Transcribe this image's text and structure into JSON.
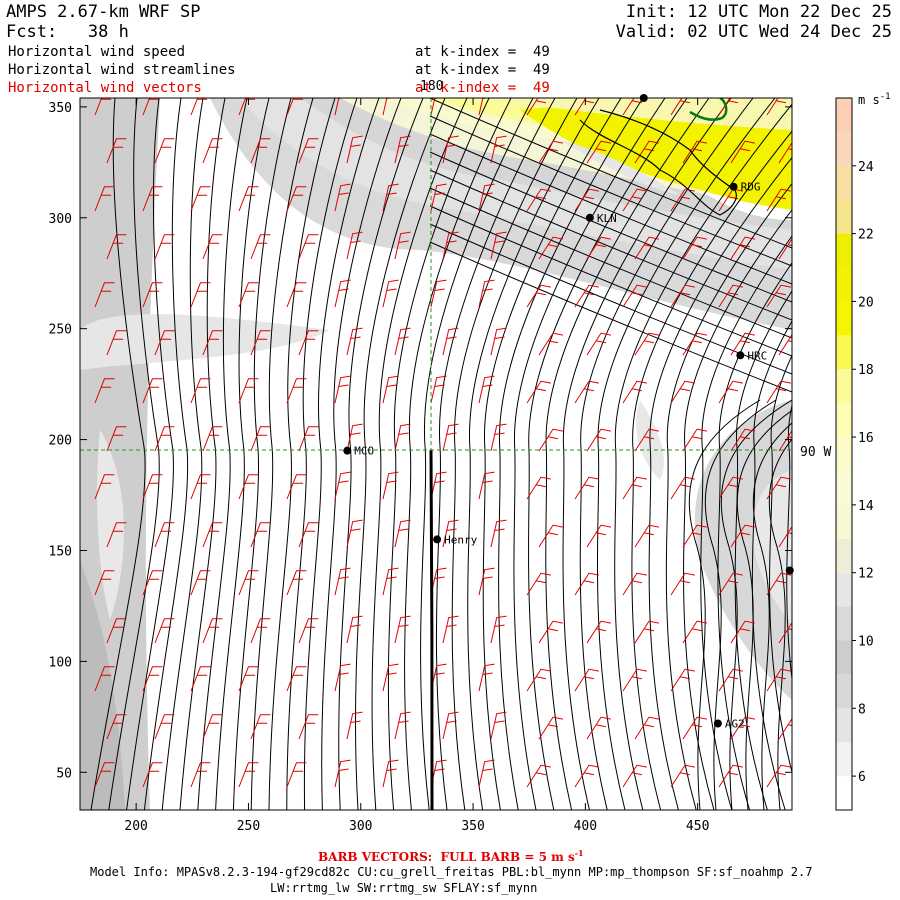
{
  "header": {
    "model_title": "AMPS 2.67-km WRF SP",
    "forecast": "Fcst:   38 h",
    "init": "Init: 12 UTC Mon 22 Dec 25",
    "valid": "Valid: 02 UTC Wed 24 Dec 25"
  },
  "fields": [
    {
      "name": "Horizontal wind speed",
      "level": "at k-index =  49",
      "color": "#000000"
    },
    {
      "name": "Horizontal wind streamlines",
      "level": "at k-index =  49",
      "color": "#000000"
    },
    {
      "name": "Horizontal wind vectors",
      "level": "at k-index =  49",
      "color": "#e00000"
    }
  ],
  "axes": {
    "x_ticks": [
      "200",
      "250",
      "300",
      "350",
      "400",
      "450"
    ],
    "y_ticks": [
      "350",
      "300",
      "250",
      "200",
      "150",
      "100",
      "50"
    ],
    "xlim": [
      175,
      492
    ],
    "ylim": [
      33,
      354
    ],
    "grid_line_labels": {
      "top": "180",
      "right": "90 W"
    }
  },
  "colorbar": {
    "unit_label": "m s",
    "unit_exp": "-1",
    "levels": [
      "24",
      "22",
      "20",
      "18",
      "16",
      "14",
      "12",
      "10",
      "8",
      "6"
    ],
    "bins": [
      {
        "from": 5,
        "to": 6,
        "color": "#ffffff"
      },
      {
        "from": 6,
        "to": 7,
        "color": "#f2f2f2"
      },
      {
        "from": 7,
        "to": 8,
        "color": "#e4e4e4"
      },
      {
        "from": 8,
        "to": 9,
        "color": "#d8d8d8"
      },
      {
        "from": 9,
        "to": 10,
        "color": "#cdcdcd"
      },
      {
        "from": 10,
        "to": 11,
        "color": "#d9d9d9"
      },
      {
        "from": 11,
        "to": 12,
        "color": "#e6e6e6"
      },
      {
        "from": 12,
        "to": 13,
        "color": "#eeeed8"
      },
      {
        "from": 13,
        "to": 14,
        "color": "#f8f8d2"
      },
      {
        "from": 14,
        "to": 15,
        "color": "#fafad6"
      },
      {
        "from": 15,
        "to": 16,
        "color": "#fbfbca"
      },
      {
        "from": 16,
        "to": 17,
        "color": "#fdfdb6"
      },
      {
        "from": 17,
        "to": 18,
        "color": "#fbfb9a"
      },
      {
        "from": 18,
        "to": 19,
        "color": "#f8f850"
      },
      {
        "from": 19,
        "to": 20,
        "color": "#f5f500"
      },
      {
        "from": 20,
        "to": 21,
        "color": "#f2f200"
      },
      {
        "from": 21,
        "to": 22,
        "color": "#efef00"
      },
      {
        "from": 22,
        "to": 23,
        "color": "#f5e68e"
      },
      {
        "from": 23,
        "to": 24,
        "color": "#f8dea0"
      },
      {
        "from": 24,
        "to": 25,
        "color": "#fad6ba"
      },
      {
        "from": 25,
        "to": 26,
        "color": "#fccfb3"
      }
    ]
  },
  "stations": [
    {
      "label": "MCO",
      "x": 294,
      "y": 195
    },
    {
      "label": "Henry",
      "x": 334,
      "y": 155
    },
    {
      "label": "KLN",
      "x": 402,
      "y": 300
    },
    {
      "label": "RDG",
      "x": 466,
      "y": 314
    },
    {
      "label": "HRC",
      "x": 469,
      "y": 238
    },
    {
      "label": "AG2",
      "x": 459,
      "y": 72
    },
    {
      "label": "",
      "x": 491,
      "y": 141
    },
    {
      "label": "",
      "x": 426,
      "y": 354
    }
  ],
  "footer": {
    "barb_note": "BARB VECTORS:  FULL BARB = 5 m s",
    "barb_exp": "-1",
    "model_info": "Model Info: MPASv8.2.3-194-gf29cd82c CU:cu_grell_freitas PBL:bl_mynn MP:mp_thompson SF:sf_noahmp 2.7",
    "model_info2": "LW:rrtmg_lw SW:rrtmg_sw SFLAY:sf_mynn"
  },
  "colors": {
    "streamline": "#000000",
    "barb": "#e00000",
    "grid": "#2e8b2e",
    "coast": "#0a7a0a"
  }
}
